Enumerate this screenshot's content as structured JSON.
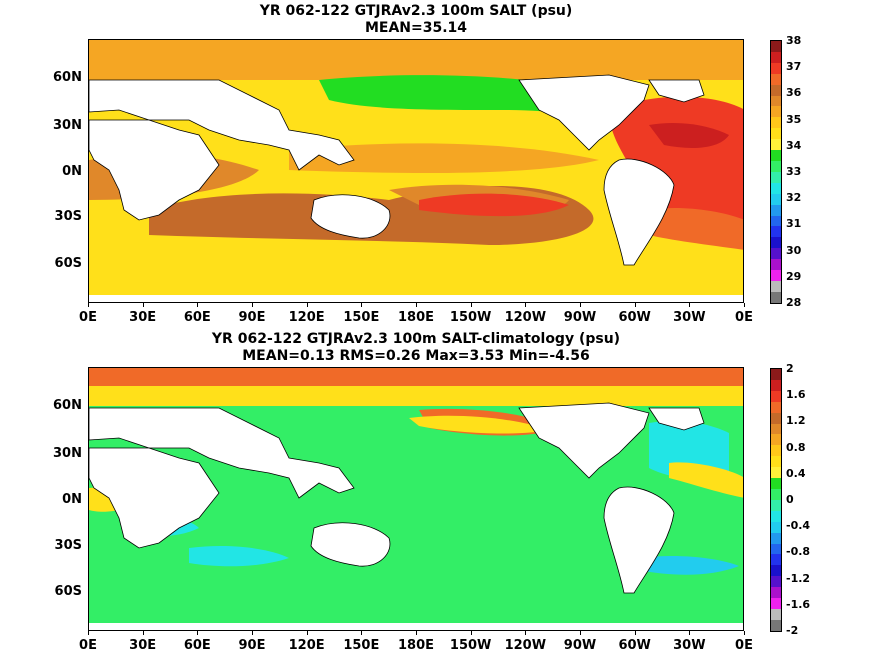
{
  "panels": [
    {
      "title_line1": "YR 062-122 GTJRAv2.3 100m SALT (psu)",
      "title_line2": "MEAN=35.14",
      "lat_labels": [
        "60N",
        "30N",
        "0N",
        "30S",
        "60S"
      ],
      "lon_labels": [
        "0E",
        "30E",
        "60E",
        "90E",
        "120E",
        "150E",
        "180E",
        "150W",
        "120W",
        "90W",
        "60W",
        "30W",
        "0E"
      ],
      "colorbar": {
        "labels": [
          "38",
          "37",
          "36",
          "35",
          "34",
          "33",
          "32",
          "31",
          "30",
          "29",
          "28"
        ],
        "colors": [
          "#8b1a1a",
          "#cc1f1f",
          "#ee3a24",
          "#f06a28",
          "#c46a2a",
          "#e0882a",
          "#f5a623",
          "#ffc71a",
          "#ffe01a",
          "#fff23a",
          "#22dd22",
          "#33ee66",
          "#33eeaa",
          "#22e5e5",
          "#22ccee",
          "#2299ee",
          "#2266ee",
          "#2233ee",
          "#1a11cc",
          "#5511cc",
          "#aa11cc",
          "#ee22ee",
          "#bbbbbb",
          "#777777"
        ]
      }
    },
    {
      "title_line1": "YR 062-122 GTJRAv2.3 100m SALT-climatology (psu)",
      "title_line2": "MEAN=0.13   RMS=0.26   Max=3.53   Min=-4.56",
      "lat_labels": [
        "60N",
        "30N",
        "0N",
        "30S",
        "60S"
      ],
      "lon_labels": [
        "0E",
        "30E",
        "60E",
        "90E",
        "120E",
        "150E",
        "180E",
        "150W",
        "120W",
        "90W",
        "60W",
        "30W",
        "0E"
      ],
      "colorbar": {
        "labels": [
          "2",
          "1.6",
          "1.2",
          "0.8",
          "0.4",
          "0",
          "-0.4",
          "-0.8",
          "-1.2",
          "-1.6",
          "-2"
        ],
        "colors": [
          "#8b1a1a",
          "#cc1f1f",
          "#ee3a24",
          "#f06a28",
          "#c46a2a",
          "#e0882a",
          "#f5a623",
          "#ffc71a",
          "#ffe01a",
          "#fff23a",
          "#22dd22",
          "#33ee66",
          "#33eeaa",
          "#22e5e5",
          "#22ccee",
          "#2299ee",
          "#2266ee",
          "#2233ee",
          "#1a11cc",
          "#5511cc",
          "#aa11cc",
          "#ee22ee",
          "#bbbbbb",
          "#777777"
        ]
      }
    }
  ],
  "palette": {
    "land": "#ffffff",
    "coast": "#000000",
    "salt_fresh": "#22dd22",
    "salt_mid": "#ffe01a",
    "salt_high": "#f5a623",
    "salt_max": "#ee3a24",
    "salt_arctic": "#f7a63a",
    "anom_zero": "#33ee66",
    "anom_pos": "#ffe01a",
    "anom_high": "#f06a28",
    "anom_neg": "#22e5e5"
  }
}
